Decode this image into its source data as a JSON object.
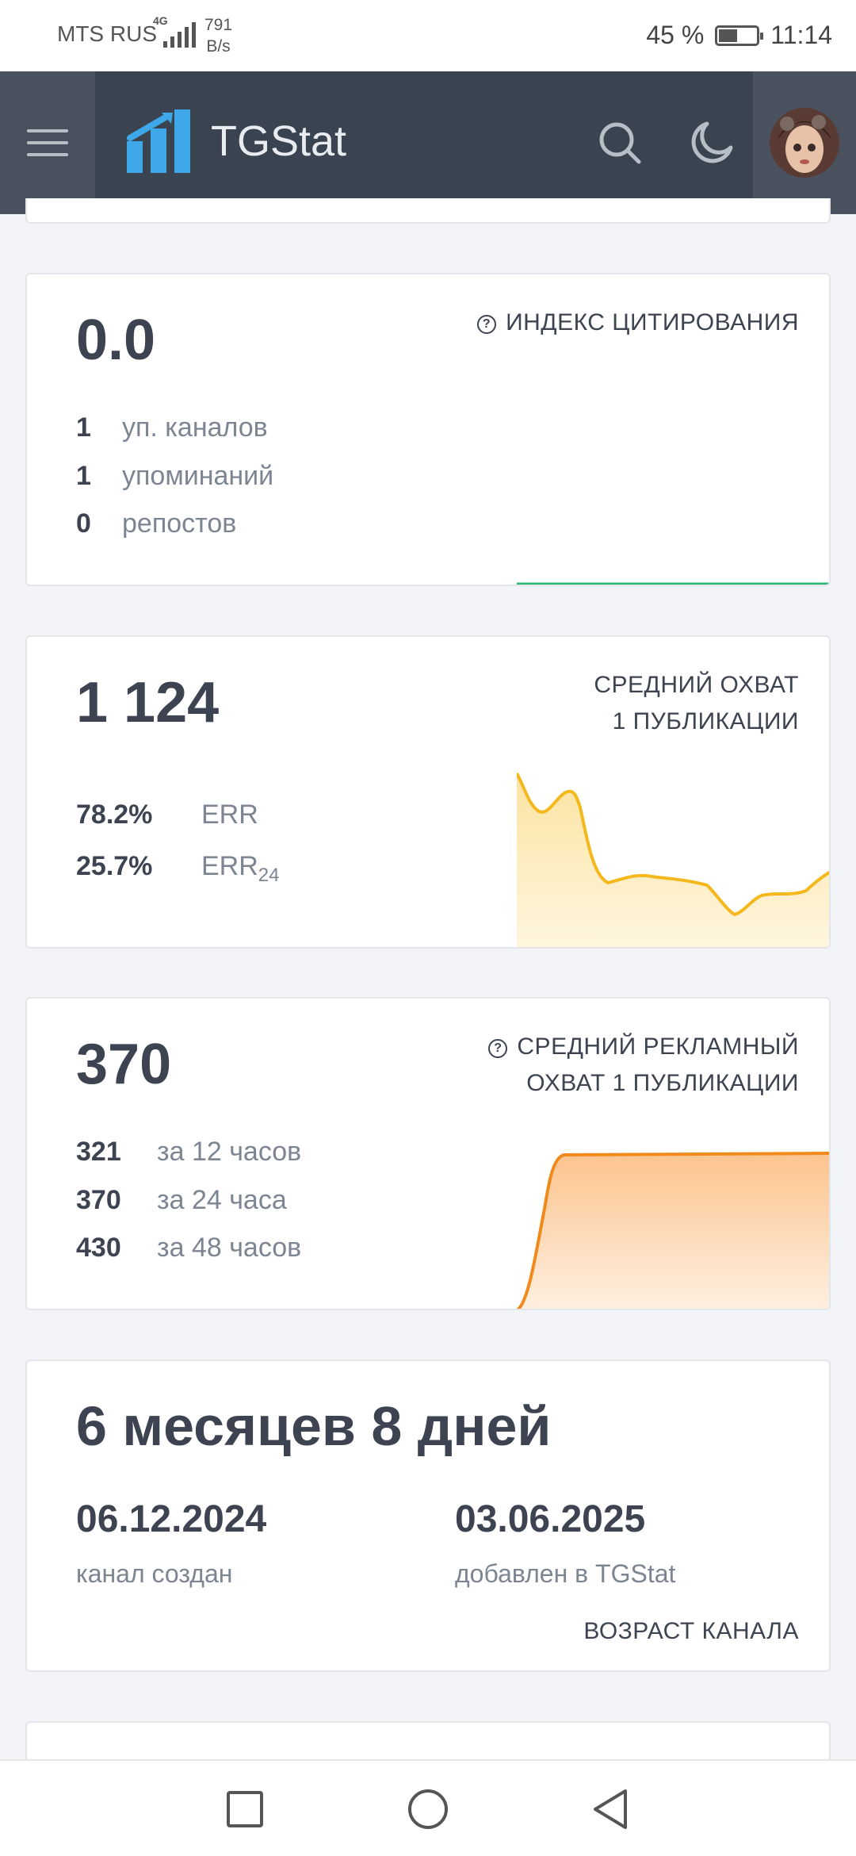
{
  "status_bar": {
    "carrier": "MTS RUS",
    "network_type": "4G",
    "speed_value": "791",
    "speed_unit": "B/s",
    "battery_percent": "45 %",
    "time": "11:14"
  },
  "header": {
    "brand": "TGStat",
    "icons": [
      "menu-icon",
      "tgstat-logo",
      "search-icon",
      "moon-icon",
      "avatar"
    ]
  },
  "citation_card": {
    "value": "0.0",
    "label": "ИНДЕКС ЦИТИРОВАНИЯ",
    "rows": [
      {
        "num": "1",
        "text": "уп. каналов"
      },
      {
        "num": "1",
        "text": "упоминаний"
      },
      {
        "num": "0",
        "text": "репостов"
      }
    ],
    "line_color": "#2bb673"
  },
  "reach_card": {
    "value": "1 124",
    "label_line1": "СРЕДНИЙ ОХВАТ",
    "label_line2": "1 ПУБЛИКАЦИИ",
    "rows": [
      {
        "num": "78.2%",
        "text": "ERR",
        "sub": ""
      },
      {
        "num": "25.7%",
        "text": "ERR",
        "sub": "24"
      }
    ],
    "line_color": "#f5b81c"
  },
  "ad_reach_card": {
    "value": "370",
    "label_line1": "СРЕДНИЙ РЕКЛАМНЫЙ",
    "label_line2": "ОХВАТ 1 ПУБЛИКАЦИИ",
    "rows": [
      {
        "num": "321",
        "text": "за 12 часов"
      },
      {
        "num": "370",
        "text": "за 24 часа"
      },
      {
        "num": "430",
        "text": "за 48 часов"
      }
    ],
    "line_color": "#f08a1c"
  },
  "age_card": {
    "value": "6 месяцев 8 дней",
    "created_date": "06.12.2024",
    "created_label": "канал создан",
    "added_date": "03.06.2025",
    "added_label": "добавлен в TGStat",
    "footer_label": "ВОЗРАСТ КАНАЛА"
  },
  "nav_bar": {
    "icons": [
      "recent-apps-icon",
      "home-icon",
      "back-icon"
    ]
  }
}
